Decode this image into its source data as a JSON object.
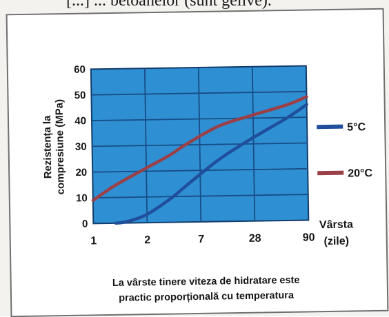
{
  "header_fragment": "[...] ... betoanelor (sunt gelive).",
  "caption": {
    "line1": "La vârste tinere viteza de hidratare este",
    "line2": "practic proporțională cu temperatura"
  },
  "colors": {
    "plot_background": "#2f8fd3",
    "grid": "#174d86",
    "series_5C": "#1f4f9c",
    "series_20C": "#9a4048"
  },
  "chart_data": {
    "type": "line",
    "title": "",
    "xlabel": "Vârsta (zile)",
    "ylabel": "Rezistența la compresiune (MPa)",
    "x_tick_labels": [
      "1",
      "2",
      "7",
      "28",
      "90"
    ],
    "y_tick_labels": [
      "0",
      "10",
      "20",
      "30",
      "40",
      "50",
      "60"
    ],
    "ylim": [
      0,
      60
    ],
    "grid": true,
    "legend_position": "right",
    "series": [
      {
        "name": "5°C",
        "color": "#1f4f9c",
        "x": [
          1.6,
          2,
          3,
          5,
          7,
          14,
          28,
          60,
          90
        ],
        "y": [
          0,
          0.5,
          3,
          9,
          14,
          24,
          32,
          40,
          45
        ]
      },
      {
        "name": "20°C",
        "color": "#9a4048",
        "x": [
          1,
          1.5,
          2,
          3,
          5,
          7,
          14,
          28,
          60,
          90
        ],
        "y": [
          9,
          14,
          17,
          21,
          26,
          30,
          37,
          41,
          45,
          48
        ]
      }
    ]
  }
}
